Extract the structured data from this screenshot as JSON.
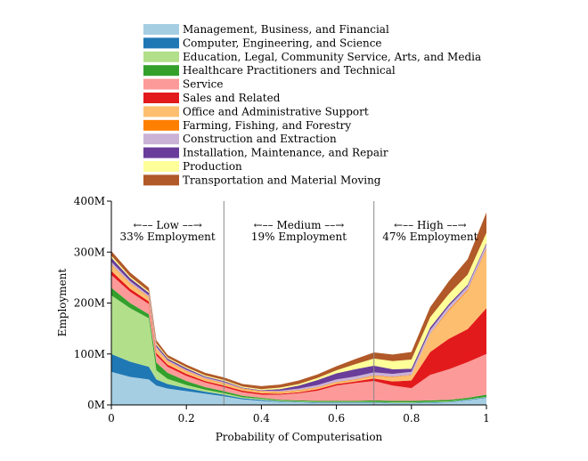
{
  "chart_data": {
    "type": "area",
    "title": "",
    "xlabel": "Probability of Computerisation",
    "ylabel": "Employment",
    "xlim": [
      0,
      1
    ],
    "ylim": [
      0,
      400
    ],
    "x_ticks": [
      "0",
      "0.2",
      "0.4",
      "0.6",
      "0.8",
      "1"
    ],
    "y_ticks": [
      "0M",
      "100M",
      "200M",
      "300M",
      "400M"
    ],
    "x_tick_values": [
      0,
      0.2,
      0.4,
      0.6,
      0.8,
      1
    ],
    "y_tick_values": [
      0,
      100,
      200,
      300,
      400
    ],
    "thresholds": [
      0.3,
      0.7
    ],
    "bands": [
      {
        "label": "←–– Low ––→",
        "share": "33% Employment",
        "center": 0.15
      },
      {
        "label": "←–– Medium ––→",
        "share": "19% Employment",
        "center": 0.5
      },
      {
        "label": "←–– High ––→",
        "share": "47% Employment",
        "center": 0.85
      }
    ],
    "x": [
      0,
      0.05,
      0.1,
      0.12,
      0.15,
      0.2,
      0.25,
      0.3,
      0.35,
      0.4,
      0.45,
      0.5,
      0.55,
      0.6,
      0.65,
      0.7,
      0.75,
      0.8,
      0.85,
      0.9,
      0.95,
      1.0
    ],
    "series": [
      {
        "name": "Management, Business, and Financial",
        "color": "#a6cee3",
        "values": [
          65,
          55,
          50,
          38,
          32,
          27,
          22,
          17,
          11,
          8,
          6,
          5,
          4,
          4,
          4,
          4,
          3,
          3,
          4,
          5,
          9,
          14
        ]
      },
      {
        "name": "Computer, Engineering, and Science",
        "color": "#1f78b4",
        "values": [
          35,
          30,
          25,
          12,
          9,
          6,
          4,
          3,
          2,
          2,
          1,
          1,
          1,
          1,
          1,
          1,
          1,
          1,
          1,
          1,
          1,
          1
        ]
      },
      {
        "name": "Education, Legal, Community Service, Arts, and Media",
        "color": "#b2df8a",
        "values": [
          115,
          105,
          95,
          18,
          10,
          6,
          4,
          3,
          2,
          2,
          1,
          1,
          1,
          1,
          1,
          1,
          1,
          1,
          1,
          1,
          1,
          1
        ]
      },
      {
        "name": "Healthcare Practitioners and Technical",
        "color": "#33a02c",
        "values": [
          15,
          10,
          8,
          15,
          12,
          8,
          5,
          4,
          3,
          2,
          2,
          2,
          2,
          2,
          2,
          3,
          3,
          3,
          3,
          3,
          3,
          4
        ]
      },
      {
        "name": "Service",
        "color": "#fb9a99",
        "values": [
          25,
          22,
          20,
          14,
          12,
          10,
          9,
          8,
          7,
          6,
          10,
          14,
          20,
          30,
          35,
          38,
          30,
          25,
          50,
          60,
          70,
          80
        ]
      },
      {
        "name": "Sales and Related",
        "color": "#e31a1c",
        "values": [
          8,
          6,
          5,
          5,
          4,
          4,
          3,
          3,
          3,
          3,
          2,
          2,
          3,
          3,
          3,
          5,
          8,
          15,
          45,
          60,
          65,
          90
        ]
      },
      {
        "name": "Office and Administrative Support",
        "color": "#fdbf6f",
        "values": [
          12,
          10,
          8,
          8,
          6,
          5,
          4,
          4,
          3,
          3,
          3,
          3,
          3,
          3,
          3,
          5,
          8,
          10,
          35,
          55,
          75,
          115
        ]
      },
      {
        "name": "Farming, Fishing, and Forestry",
        "color": "#ff7f00",
        "values": [
          1,
          1,
          1,
          1,
          1,
          1,
          1,
          1,
          1,
          1,
          1,
          1,
          1,
          1,
          1,
          1,
          1,
          1,
          1,
          2,
          2,
          2
        ]
      },
      {
        "name": "Construction and Extraction",
        "color": "#cab2d6",
        "values": [
          5,
          4,
          3,
          3,
          2,
          2,
          2,
          2,
          1,
          1,
          2,
          3,
          4,
          5,
          6,
          6,
          6,
          6,
          7,
          7,
          7,
          8
        ]
      },
      {
        "name": "Installation, Maintenance, and Repair",
        "color": "#6a3d9a",
        "values": [
          8,
          6,
          5,
          4,
          3,
          3,
          2,
          2,
          1,
          1,
          3,
          6,
          10,
          12,
          14,
          13,
          9,
          6,
          5,
          4,
          3,
          3
        ]
      },
      {
        "name": "Production",
        "color": "#ffff99",
        "values": [
          4,
          3,
          3,
          3,
          2,
          2,
          2,
          2,
          2,
          2,
          3,
          3,
          4,
          6,
          10,
          14,
          16,
          18,
          20,
          20,
          20,
          20
        ]
      },
      {
        "name": "Transportation and Material Moving",
        "color": "#b15928",
        "values": [
          9,
          8,
          7,
          6,
          5,
          5,
          5,
          5,
          5,
          6,
          6,
          7,
          7,
          8,
          10,
          12,
          13,
          15,
          20,
          25,
          30,
          40
        ]
      }
    ]
  }
}
